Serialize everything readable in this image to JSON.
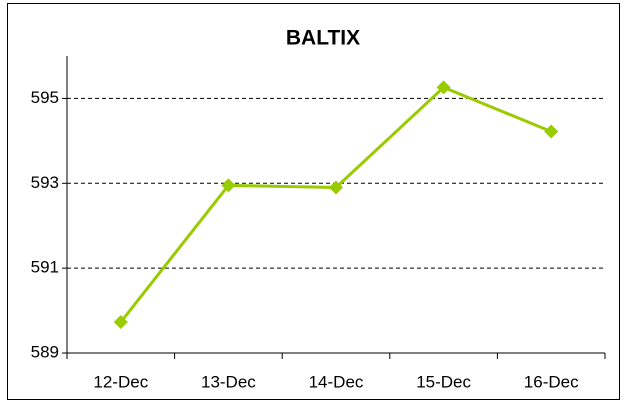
{
  "chart_data": {
    "type": "line",
    "title": "BALTIX",
    "categories": [
      "12-Dec",
      "13-Dec",
      "14-Dec",
      "15-Dec",
      "16-Dec"
    ],
    "series": [
      {
        "name": "BALTIX",
        "color": "#99cc00",
        "values": [
          589.73,
          592.95,
          592.9,
          595.26,
          594.22
        ]
      }
    ],
    "ylim": [
      589,
      596
    ],
    "yticks": [
      589,
      591,
      593,
      595
    ],
    "grid": true
  }
}
